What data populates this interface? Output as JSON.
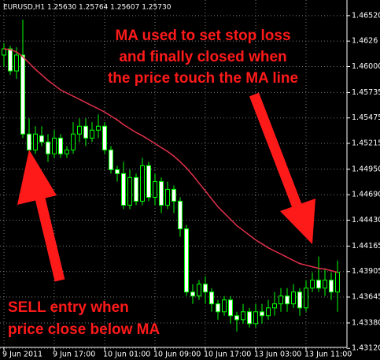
{
  "chart_data": {
    "type": "candlestick",
    "header": "EURUSD,H1  1.25630 1.25764 1.25607 1.25730",
    "annotations": [
      [
        "MA used to set stop loss",
        "and finally closed when",
        "the price touch the MA line"
      ],
      [
        "SELL entry when",
        "price close below MA"
      ]
    ],
    "categories": [
      "9 Jun 2011",
      null,
      null,
      null,
      null,
      null,
      null,
      null,
      "9 Jun 17:00",
      null,
      null,
      null,
      null,
      null,
      null,
      null,
      "10 Jun 01:00",
      null,
      null,
      null,
      null,
      null,
      null,
      null,
      "10 Jun 09:00",
      null,
      null,
      null,
      null,
      null,
      null,
      null,
      "10 Jun 17:00",
      null,
      null,
      null,
      null,
      null,
      null,
      null,
      "13 Jun 03:00",
      null,
      null,
      null,
      null,
      null,
      null,
      null,
      "13 Jun 11:00",
      null,
      null,
      null,
      null,
      null
    ],
    "open": [
      1.46117,
      1.46181,
      1.45955,
      1.46117,
      1.4531,
      1.45148,
      1.45293,
      1.45229,
      1.45108,
      1.45269,
      1.45108,
      1.45148,
      1.4531,
      1.4539,
      1.45269,
      1.4535,
      1.4539,
      1.45148,
      1.44946,
      1.44906,
      1.44583,
      1.44866,
      1.44624,
      1.44987,
      1.44664,
      1.44825,
      1.44583,
      1.44745,
      1.44624,
      1.44341,
      1.43696,
      1.43655,
      1.43776,
      1.43696,
      1.43575,
      1.43494,
      1.43615,
      1.43454,
      1.43413,
      1.43494,
      1.43373,
      1.43494,
      1.43454,
      1.43534,
      1.43575,
      1.43655,
      1.43575,
      1.43696,
      1.43534,
      1.43736,
      1.43817,
      1.43736,
      1.43817,
      1.43696
    ],
    "high": [
      1.46238,
      1.46213,
      1.46197,
      1.4648,
      1.45471,
      1.4539,
      1.4539,
      1.4531,
      1.4535,
      1.4531,
      1.45188,
      1.45431,
      1.45471,
      1.45471,
      1.45431,
      1.45511,
      1.45431,
      1.45188,
      1.44987,
      1.45027,
      1.44946,
      1.44906,
      1.45067,
      1.45027,
      1.44906,
      1.44866,
      1.44825,
      1.44785,
      1.44664,
      1.44382,
      1.43776,
      1.43817,
      1.43857,
      1.43736,
      1.43615,
      1.43655,
      1.43655,
      1.43494,
      1.43575,
      1.43534,
      1.43575,
      1.43575,
      1.43615,
      1.43696,
      1.43736,
      1.43736,
      1.43776,
      1.43736,
      1.43817,
      1.43897,
      1.44059,
      1.43938,
      1.43897,
      1.44018
    ],
    "low": [
      1.45995,
      1.45915,
      1.45874,
      1.45269,
      1.45067,
      1.45108,
      1.45188,
      1.45027,
      1.45067,
      1.45067,
      1.45067,
      1.45108,
      1.45229,
      1.45188,
      1.45229,
      1.45269,
      1.45108,
      1.44906,
      1.44825,
      1.44543,
      1.44543,
      1.44583,
      1.44583,
      1.44624,
      1.44583,
      1.44503,
      1.44543,
      1.44503,
      1.4426,
      1.43655,
      1.43575,
      1.43615,
      1.43575,
      1.43494,
      1.43413,
      1.43454,
      1.43373,
      1.43292,
      1.43373,
      1.43333,
      1.43333,
      1.43373,
      1.43413,
      1.43454,
      1.43494,
      1.43494,
      1.43534,
      1.43454,
      1.43494,
      1.43696,
      1.43696,
      1.43655,
      1.43615,
      1.43494
    ],
    "close": [
      1.46181,
      1.45955,
      1.46117,
      1.4531,
      1.45148,
      1.4531,
      1.45229,
      1.45108,
      1.45269,
      1.45108,
      1.45148,
      1.4531,
      1.4539,
      1.45269,
      1.4535,
      1.4539,
      1.45148,
      1.44946,
      1.44906,
      1.44583,
      1.44866,
      1.44624,
      1.44987,
      1.44664,
      1.44825,
      1.44583,
      1.44745,
      1.44624,
      1.44341,
      1.43696,
      1.43655,
      1.43776,
      1.43696,
      1.43575,
      1.43494,
      1.43615,
      1.43454,
      1.43413,
      1.43494,
      1.43373,
      1.43494,
      1.43454,
      1.43534,
      1.43575,
      1.43655,
      1.43575,
      1.43696,
      1.43534,
      1.43736,
      1.43817,
      1.43736,
      1.43817,
      1.43696,
      1.43897
    ],
    "ma": {
      "color": "#e0304a",
      "values": [
        1.46181,
        1.46173,
        1.46149,
        1.461,
        1.46036,
        1.45971,
        1.45915,
        1.45858,
        1.4581,
        1.45761,
        1.45729,
        1.45697,
        1.45665,
        1.45632,
        1.456,
        1.45568,
        1.45535,
        1.45495,
        1.45455,
        1.45406,
        1.45366,
        1.45326,
        1.45293,
        1.45253,
        1.45213,
        1.45172,
        1.45132,
        1.45084,
        1.45027,
        1.44963,
        1.4489,
        1.44809,
        1.44729,
        1.44648,
        1.44567,
        1.44503,
        1.44439,
        1.44374,
        1.44326,
        1.44277,
        1.44228,
        1.44188,
        1.44148,
        1.44115,
        1.44083,
        1.44051,
        1.44018,
        1.43986,
        1.4397,
        1.43954,
        1.43938,
        1.4393,
        1.43914,
        1.43897
      ]
    },
    "candle_color": "#00ff00",
    "up_fill": "#000000",
    "down_fill": "#ffffff",
    "ylim": [
      1.4313,
      1.4668
    ],
    "yticks": [
      {
        "value": 1.4652,
        "label": "1.46520"
      },
      1.4626,
      {
        "value": 1.46,
        "label": "1.46000"
      },
      1.45735,
      1.45475,
      1.45215,
      {
        "value": 1.4495,
        "label": "1.44950"
      },
      {
        "value": 1.4469,
        "label": "1.44690"
      },
      {
        "value": 1.4443,
        "label": "1.44430"
      },
      1.44165,
      1.43905,
      1.43645,
      {
        "value": 1.4338,
        "label": "1.43380"
      },
      {
        "value": 1.4312,
        "label": "1.43120"
      }
    ],
    "grid": true
  }
}
